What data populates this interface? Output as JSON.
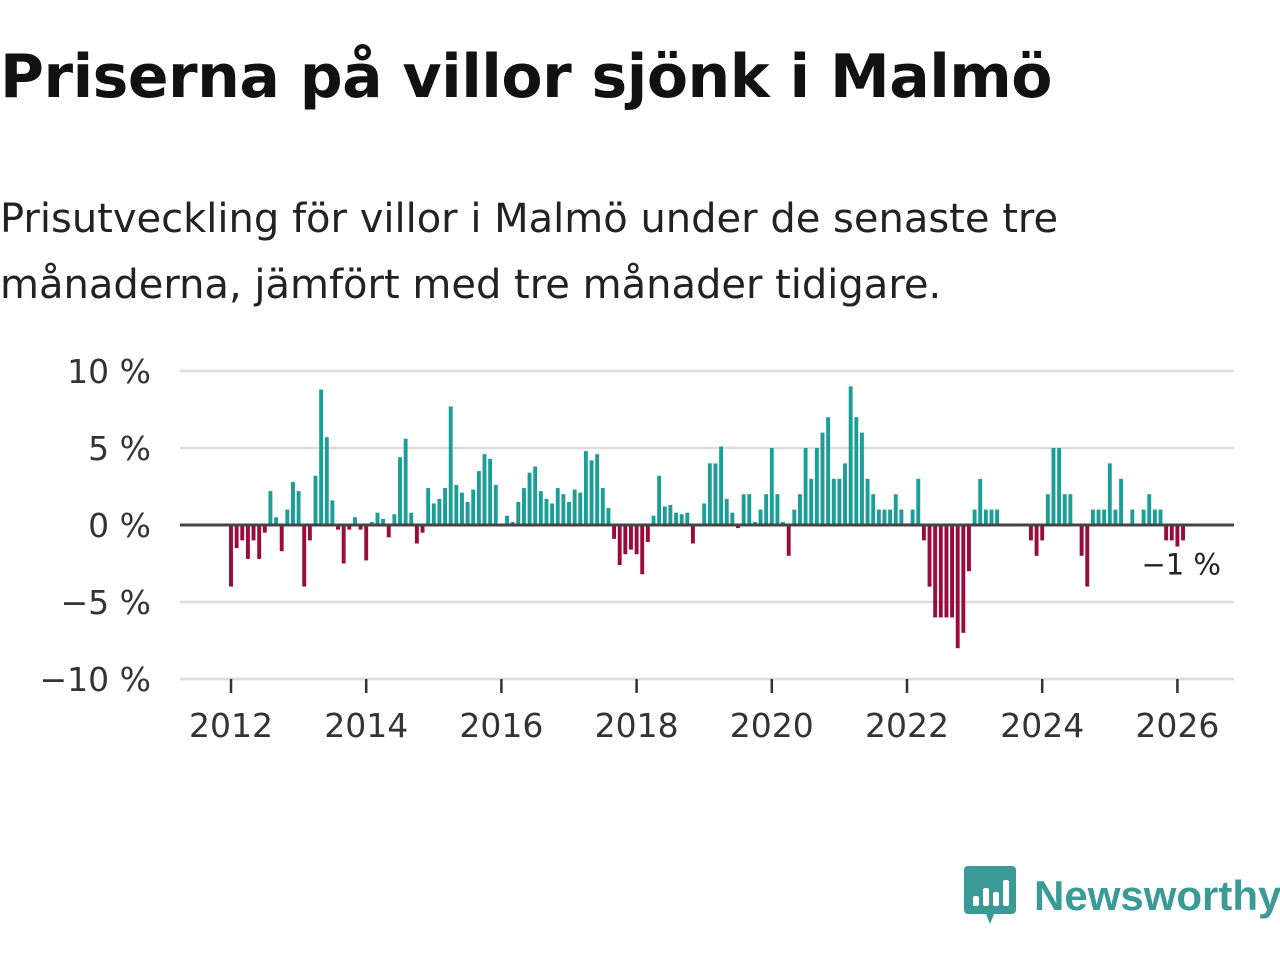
{
  "title": "Priserna på villor sjönk i Malmö",
  "subtitle": "Prisutveckling för villor i Malmö under de senaste tre månaderna, jämfört med tre månader tidigare.",
  "logo": {
    "text": "Newsworthy",
    "icon": "newsworthy-logo-icon",
    "color": "#3a9a96"
  },
  "colors": {
    "positive": "#1a9e95",
    "negative": "#9b0a3c",
    "grid": "#dddddd",
    "zero_line": "#444444"
  },
  "chart_data": {
    "type": "bar",
    "title": "Priserna på villor sjönk i Malmö",
    "xlabel": "",
    "ylabel": "",
    "ylim": [
      -10,
      10
    ],
    "y_ticks": [
      10,
      5,
      0,
      -5,
      -10
    ],
    "y_tick_labels": [
      "10 %",
      "5 %",
      "0 %",
      "−5 %",
      "−10 %"
    ],
    "x_ticks": [
      2012,
      2014,
      2016,
      2018,
      2020,
      2022,
      2024,
      2026
    ],
    "x_tick_labels": [
      "2012",
      "2014",
      "2016",
      "2018",
      "2020",
      "2022",
      "2024",
      "2026"
    ],
    "x_start": 2012,
    "period_months": 1,
    "unit": "%",
    "last_value_label": "−1 %",
    "values": [
      -4,
      -1.5,
      -1,
      -2.2,
      -1,
      -2.2,
      -0.5,
      2.2,
      0.5,
      -1.7,
      1,
      2.8,
      2.2,
      -4,
      -1,
      3.2,
      8.8,
      5.7,
      1.6,
      -0.3,
      -2.5,
      -0.3,
      0.5,
      -0.3,
      -2.3,
      0.2,
      0.8,
      0.4,
      -0.8,
      0.7,
      4.4,
      5.6,
      0.8,
      -1.2,
      -0.5,
      2.4,
      1.4,
      1.7,
      2.4,
      7.7,
      2.6,
      2.1,
      1.5,
      2.3,
      3.5,
      4.6,
      4.3,
      2.6,
      -0.1,
      0.6,
      0.2,
      1.5,
      2.4,
      3.4,
      3.8,
      2.2,
      1.7,
      1.4,
      2.4,
      2,
      1.5,
      2.3,
      2.1,
      4.8,
      4.2,
      4.6,
      2.4,
      1.1,
      -0.9,
      -2.6,
      -1.9,
      -1.6,
      -1.9,
      -3.2,
      -1.1,
      0.6,
      3.2,
      1.2,
      1.3,
      0.8,
      0.7,
      0.8,
      -1.2,
      0.1,
      1.4,
      4,
      4,
      5.1,
      1.7,
      0.8,
      -0.2,
      2,
      2,
      0.2,
      1,
      2,
      5,
      2,
      0.2,
      -2,
      1,
      2,
      5,
      3,
      5,
      6,
      7,
      3,
      3,
      4,
      9,
      7,
      6,
      3,
      2,
      1,
      1,
      1,
      2,
      1,
      0.1,
      1,
      3,
      -1,
      -4,
      -6,
      -6,
      -6,
      -6,
      -8,
      -7,
      -3,
      1,
      3,
      1,
      1,
      1,
      0.1,
      0.1,
      0.1,
      0.1,
      0.1,
      -1,
      -2,
      -1,
      2,
      5,
      5,
      2,
      2,
      0.1,
      -2,
      -4,
      1,
      1,
      1,
      4,
      1,
      3,
      0.1,
      1,
      0.1,
      1,
      2,
      1,
      1,
      -1,
      -1,
      -1.4,
      -1
    ]
  }
}
